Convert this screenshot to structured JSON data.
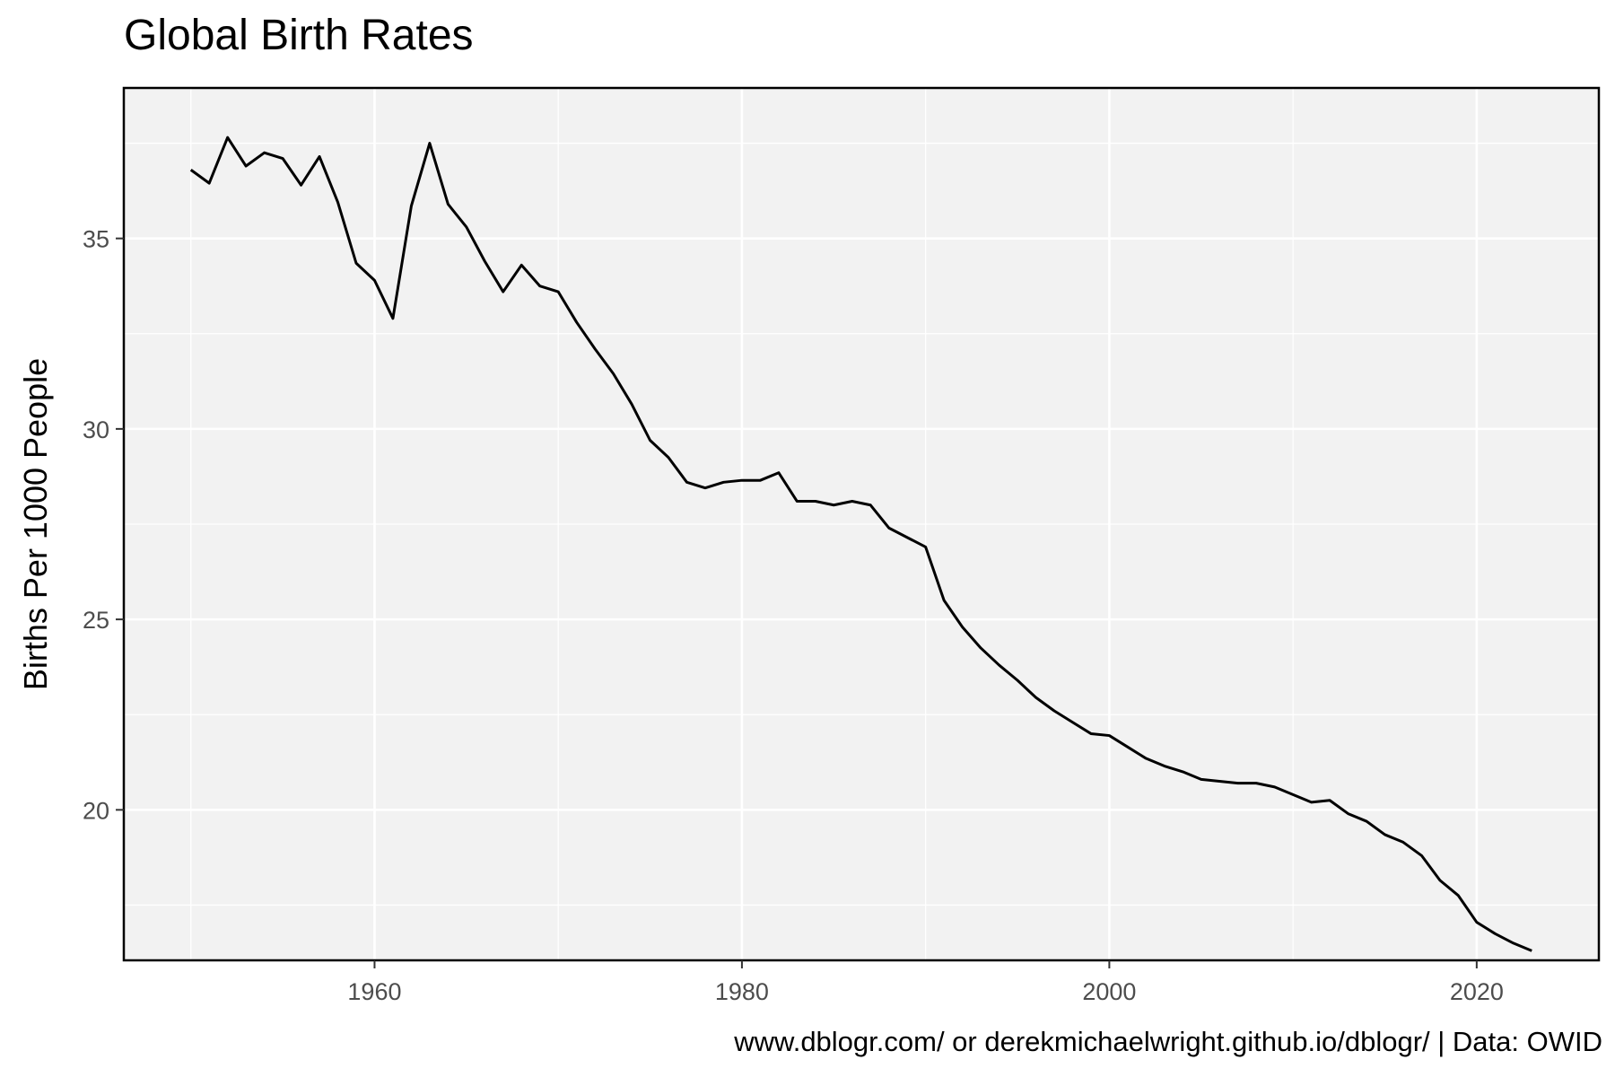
{
  "chart_data": {
    "type": "line",
    "title": "Global Birth Rates",
    "xlabel": "",
    "ylabel": "Births Per 1000 People",
    "caption": "www.dblogr.com/ or derekmichaelwright.github.io/dblogr/ | Data: OWID",
    "xlim": [
      1946.35,
      2026.65
    ],
    "ylim": [
      16.05,
      38.95
    ],
    "x_ticks": [
      1960,
      1980,
      2000,
      2020
    ],
    "y_ticks": [
      20,
      25,
      30,
      35
    ],
    "grid": true,
    "legend": "none",
    "colors": {
      "panel_background": "#f2f2f2",
      "grid": "#ffffff",
      "line": "#000000",
      "border": "#000000"
    },
    "series": [
      {
        "x": [
          1950,
          1951,
          1952,
          1953,
          1954,
          1955,
          1956,
          1957,
          1958,
          1959,
          1960,
          1961,
          1962,
          1963,
          1964,
          1965,
          1966,
          1967,
          1968,
          1969,
          1970,
          1971,
          1972,
          1973,
          1974,
          1975,
          1976,
          1977,
          1978,
          1979,
          1980,
          1981,
          1982,
          1983,
          1984,
          1985,
          1986,
          1987,
          1988,
          1989,
          1990,
          1991,
          1992,
          1993,
          1994,
          1995,
          1996,
          1997,
          1998,
          1999,
          2000,
          2001,
          2002,
          2003,
          2004,
          2005,
          2006,
          2007,
          2008,
          2009,
          2010,
          2011,
          2012,
          2013,
          2014,
          2015,
          2016,
          2017,
          2018,
          2019,
          2020,
          2021,
          2022,
          2023
        ],
        "values": [
          36.8,
          36.45,
          37.65,
          36.9,
          37.25,
          37.1,
          36.4,
          37.15,
          35.95,
          34.35,
          33.9,
          32.9,
          35.85,
          37.5,
          35.9,
          35.3,
          34.4,
          33.6,
          34.3,
          33.75,
          33.6,
          32.8,
          32.1,
          31.45,
          30.65,
          29.7,
          29.25,
          28.6,
          28.45,
          28.6,
          28.65,
          28.65,
          28.85,
          28.1,
          28.1,
          28.0,
          28.1,
          28.0,
          27.4,
          27.15,
          26.9,
          25.5,
          24.8,
          24.25,
          23.8,
          23.4,
          22.95,
          22.6,
          22.3,
          22.0,
          21.95,
          21.65,
          21.35,
          21.15,
          21.0,
          20.8,
          20.75,
          20.7,
          20.7,
          20.6,
          20.4,
          20.2,
          20.25,
          19.9,
          19.7,
          19.35,
          19.15,
          18.8,
          18.15,
          17.75,
          17.05,
          16.75,
          16.5,
          16.3
        ]
      }
    ]
  }
}
